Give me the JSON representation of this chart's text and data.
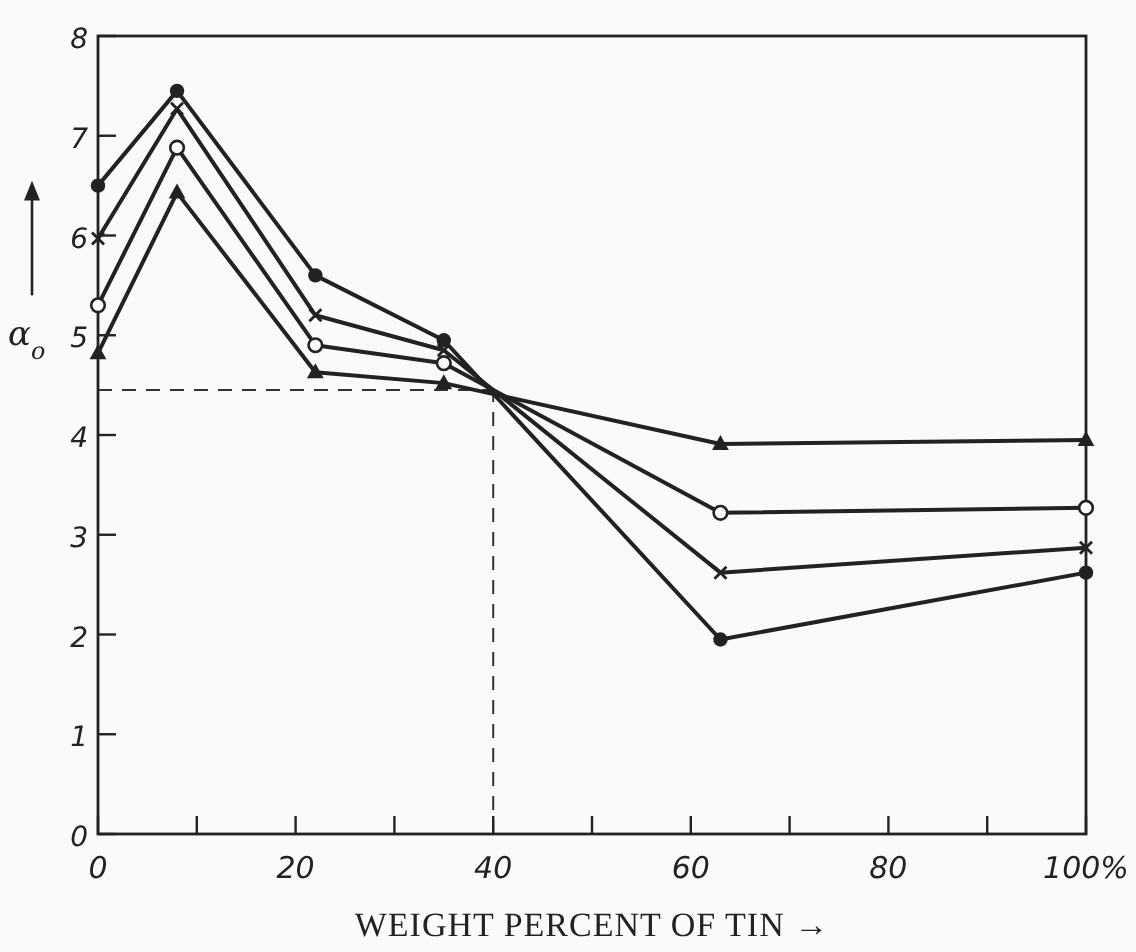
{
  "chart_data": {
    "type": "line",
    "xlabel": "WEIGHT PERCENT OF TIN →",
    "ylabel": "α$_{o}$",
    "x": [
      0,
      8,
      22,
      35,
      63,
      100
    ],
    "xlim": [
      0,
      100
    ],
    "ylim": [
      0,
      8
    ],
    "xticks": [
      0,
      {
        "value": 10,
        "label": null
      },
      20,
      {
        "value": 30,
        "label": null
      },
      40,
      {
        "value": 50,
        "label": null
      },
      60,
      {
        "value": 70,
        "label": null
      },
      80,
      {
        "value": 90,
        "label": null
      },
      {
        "value": 100,
        "label": "100%"
      }
    ],
    "yticks": [
      0,
      1,
      2,
      3,
      4,
      5,
      6,
      7,
      8
    ],
    "grid": false,
    "line_style": "solid",
    "series": [
      {
        "color": "#222222",
        "marker": "circle",
        "values": [
          6.5,
          7.45,
          5.6,
          4.95,
          1.95,
          2.62
        ]
      },
      {
        "color": "#222222",
        "marker": "cross",
        "values": [
          5.97,
          7.27,
          5.2,
          4.85,
          2.62,
          2.87
        ]
      },
      {
        "color": "#222222",
        "marker": "open-circle",
        "values": [
          5.3,
          6.88,
          4.9,
          4.72,
          3.22,
          3.27
        ]
      },
      {
        "color": "#222222",
        "marker": "triangle",
        "values": [
          4.82,
          6.43,
          4.63,
          4.52,
          3.91,
          3.95
        ]
      }
    ],
    "ref_lines": [
      {
        "axis": "y",
        "value": 4.45,
        "line_style": "dashed",
        "color": "#333333"
      },
      {
        "axis": "x",
        "value": 40,
        "line_style": "dashed",
        "color": "#333333"
      }
    ]
  }
}
